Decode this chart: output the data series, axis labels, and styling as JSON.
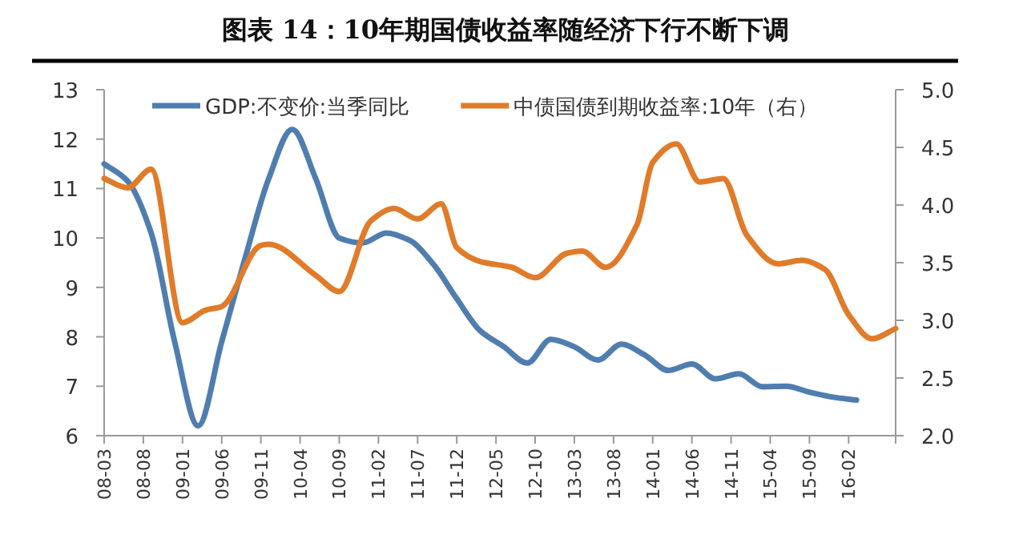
{
  "chart_data": {
    "type": "line",
    "title": "图表 14：10年期国债收益率随经济下行不断下调",
    "xlim": [
      "2008-03",
      "2016-08"
    ],
    "xticks": [
      {
        "value": "2008-03",
        "label": "08-03"
      },
      {
        "value": "2008-08",
        "label": "08-08"
      },
      {
        "value": "2009-01",
        "label": "09-01"
      },
      {
        "value": "2009-06",
        "label": "09-06"
      },
      {
        "value": "2009-11",
        "label": "09-11"
      },
      {
        "value": "2010-04",
        "label": "10-04"
      },
      {
        "value": "2010-09",
        "label": "10-09"
      },
      {
        "value": "2011-02",
        "label": "11-02"
      },
      {
        "value": "2011-07",
        "label": "11-07"
      },
      {
        "value": "2011-12",
        "label": "11-12"
      },
      {
        "value": "2012-05",
        "label": "12-05"
      },
      {
        "value": "2012-10",
        "label": "12-10"
      },
      {
        "value": "2013-03",
        "label": "13-03"
      },
      {
        "value": "2013-08",
        "label": "13-08"
      },
      {
        "value": "2014-01",
        "label": "14-01"
      },
      {
        "value": "2014-06",
        "label": "14-06"
      },
      {
        "value": "2014-11",
        "label": "14-11"
      },
      {
        "value": "2015-04",
        "label": "15-04"
      },
      {
        "value": "2015-09",
        "label": "15-09"
      },
      {
        "value": "2016-02",
        "label": "16-02"
      },
      {
        "value": "2016-08",
        "label": null
      }
    ],
    "ylim": [
      6,
      13
    ],
    "yticks": [
      6,
      7,
      8,
      9,
      10,
      11,
      12,
      13
    ],
    "y2lim": [
      2,
      5
    ],
    "y2ticks": [
      {
        "value": 2,
        "label": "2.0"
      },
      {
        "value": 2.5,
        "label": "2.5"
      },
      {
        "value": 3,
        "label": "3.0"
      },
      {
        "value": 3.5,
        "label": "3.5"
      },
      {
        "value": 4,
        "label": "4.0"
      },
      {
        "value": 4.5,
        "label": "4.5"
      },
      {
        "value": 5,
        "label": "5.0"
      }
    ],
    "legend": "top",
    "grid": false,
    "line_style": "solid",
    "marker": "none",
    "series": [
      {
        "name": "GDP:不变价:当季同比",
        "color": "#4f7db0",
        "x": [
          "2008-03",
          "2008-06",
          "2008-09",
          "2008-12",
          "2009-03",
          "2009-06",
          "2009-09",
          "2009-12",
          "2010-03",
          "2010-06",
          "2010-09",
          "2010-12",
          "2011-03",
          "2011-06",
          "2011-09",
          "2011-12",
          "2012-03",
          "2012-06",
          "2012-09",
          "2012-12",
          "2013-03",
          "2013-06",
          "2013-09",
          "2013-12",
          "2014-03",
          "2014-06",
          "2014-09",
          "2014-12",
          "2015-03",
          "2015-06",
          "2015-09",
          "2015-12",
          "2016-03"
        ],
        "values": [
          11.5,
          11.15,
          10.1,
          7.9,
          6.2,
          7.9,
          9.6,
          11.2,
          12.2,
          11.2,
          10.0,
          9.9,
          10.1,
          9.95,
          9.47,
          8.77,
          8.12,
          7.8,
          7.47,
          7.95,
          7.8,
          7.53,
          7.85,
          7.63,
          7.32,
          7.45,
          7.15,
          7.25,
          6.99,
          7.0,
          6.88,
          6.78,
          6.72
        ]
      },
      {
        "name": "中债国债到期收益率:10年（右）",
        "color": "#e07b2a",
        "axis": "y2",
        "x": [
          "2008-03",
          "2008-06",
          "2008-09",
          "2009-01",
          "2009-04",
          "2009-06",
          "2009-11",
          "2009-12",
          "2010-06",
          "2010-09",
          "2011-01",
          "2011-04",
          "2011-07",
          "2011-10",
          "2011-12",
          "2012-03",
          "2012-07",
          "2012-10",
          "2013-02",
          "2013-04",
          "2013-07",
          "2013-11",
          "2014-01",
          "2014-04",
          "2014-07",
          "2014-10",
          "2015-01",
          "2015-05",
          "2015-08",
          "2015-11",
          "2016-02",
          "2016-05",
          "2016-08"
        ],
        "values": [
          4.23,
          4.15,
          4.31,
          2.98,
          3.09,
          3.12,
          3.65,
          3.66,
          3.39,
          3.25,
          3.86,
          3.97,
          3.88,
          4.01,
          3.63,
          3.51,
          3.46,
          3.37,
          3.58,
          3.6,
          3.46,
          3.83,
          4.37,
          4.53,
          4.2,
          4.23,
          3.74,
          3.49,
          3.52,
          3.44,
          3.05,
          2.84,
          2.93
        ]
      }
    ]
  }
}
